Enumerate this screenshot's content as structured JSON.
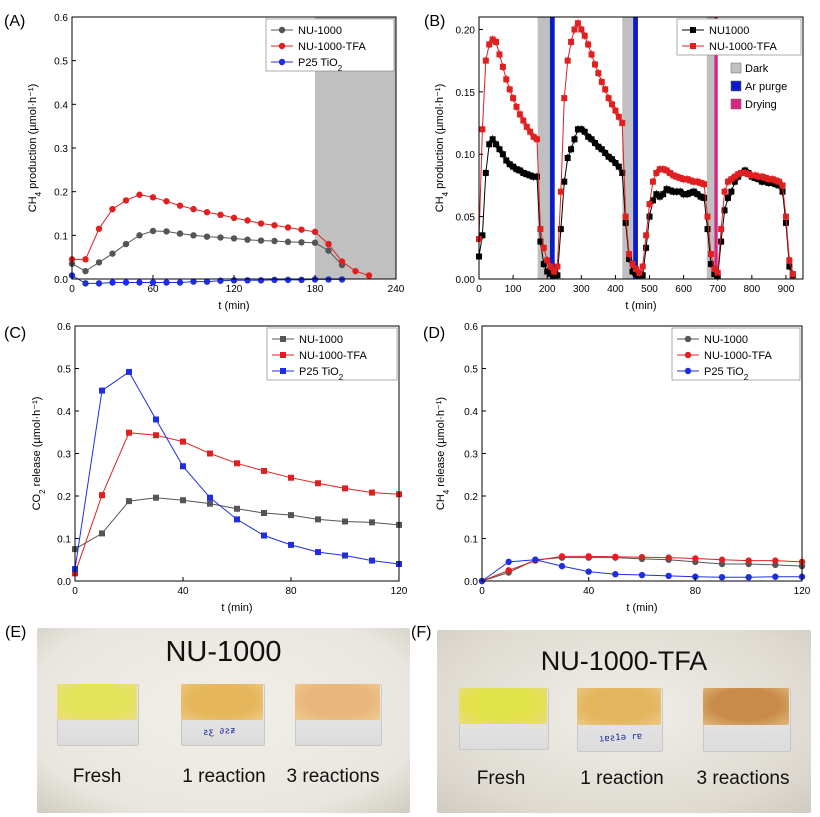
{
  "chart_data": [
    {
      "panel": "(A)",
      "type": "line",
      "xlabel": "t (min)",
      "ylabel": "CH4 production (µmol·h⁻¹)",
      "xlim": [
        0,
        240
      ],
      "ylim": [
        0,
        0.6
      ],
      "xticks": [
        0,
        60,
        120,
        180,
        240
      ],
      "yticks": [
        0.0,
        0.1,
        0.2,
        0.3,
        0.4,
        0.5,
        0.6
      ],
      "legend_position": "top-right",
      "shaded_regions": [
        {
          "x0": 180,
          "x1": 240,
          "color": "#c0c0c0"
        }
      ],
      "series": [
        {
          "name": "NU-1000",
          "color": "#555555",
          "marker": "circle",
          "x": [
            0,
            10,
            20,
            30,
            40,
            50,
            60,
            70,
            80,
            90,
            100,
            110,
            120,
            130,
            140,
            150,
            160,
            170,
            180,
            190,
            200
          ],
          "values": [
            0.035,
            0.018,
            0.038,
            0.058,
            0.08,
            0.1,
            0.11,
            0.109,
            0.104,
            0.1,
            0.097,
            0.095,
            0.093,
            0.09,
            0.088,
            0.087,
            0.085,
            0.084,
            0.083,
            0.065,
            0.032
          ]
        },
        {
          "name": "NU-1000-TFA",
          "color": "#e02020",
          "marker": "circle",
          "x": [
            0,
            10,
            20,
            30,
            40,
            50,
            60,
            70,
            80,
            90,
            100,
            110,
            120,
            130,
            140,
            150,
            160,
            170,
            180,
            190,
            200,
            210,
            220
          ],
          "values": [
            0.045,
            0.045,
            0.115,
            0.16,
            0.18,
            0.193,
            0.187,
            0.178,
            0.168,
            0.16,
            0.153,
            0.147,
            0.14,
            0.134,
            0.127,
            0.123,
            0.118,
            0.113,
            0.108,
            0.08,
            0.04,
            0.018,
            0.008
          ]
        },
        {
          "name": "P25 TiO2",
          "color": "#1f2fe0",
          "marker": "circle",
          "x": [
            0,
            10,
            20,
            30,
            40,
            50,
            60,
            70,
            80,
            90,
            100,
            110,
            120,
            130,
            140,
            150,
            160,
            170,
            180,
            190,
            200
          ],
          "values": [
            0.008,
            -0.01,
            -0.01,
            -0.008,
            -0.008,
            -0.008,
            -0.008,
            -0.008,
            -0.008,
            -0.006,
            -0.006,
            -0.004,
            -0.003,
            -0.003,
            -0.003,
            -0.002,
            -0.002,
            -0.002,
            -0.001,
            -0.001,
            -0.001
          ]
        }
      ]
    },
    {
      "panel": "(B)",
      "type": "scatter",
      "xlabel": "t (min)",
      "ylabel": "CH4 production (µmol·h⁻¹)",
      "xlim": [
        0,
        950
      ],
      "ylim": [
        0,
        0.21
      ],
      "xticks": [
        0,
        100,
        200,
        300,
        400,
        500,
        600,
        700,
        800,
        900
      ],
      "yticks": [
        0.0,
        0.05,
        0.1,
        0.15,
        0.2
      ],
      "legend_position": "top-right",
      "shaded_regions": [
        {
          "x0": 172,
          "x1": 208,
          "color": "#c0c0c0"
        },
        {
          "x0": 208,
          "x1": 222,
          "color": "#0b1bc8"
        },
        {
          "x0": 420,
          "x1": 452,
          "color": "#c0c0c0"
        },
        {
          "x0": 452,
          "x1": 466,
          "color": "#0b1bc8"
        },
        {
          "x0": 668,
          "x1": 690,
          "color": "#c0c0c0"
        },
        {
          "x0": 690,
          "x1": 700,
          "color": "#d6267f"
        }
      ],
      "region_legend": [
        {
          "label": "Dark",
          "color": "#c0c0c0"
        },
        {
          "label": "Ar purge",
          "color": "#0b1bc8"
        },
        {
          "label": "Drying",
          "color": "#d6267f"
        }
      ],
      "series": [
        {
          "name": "NU1000",
          "color": "#000000",
          "marker": "square",
          "segments": [
            {
              "x": [
                0,
                10,
                20,
                30,
                40,
                50,
                60,
                70,
                80,
                90,
                100,
                110,
                120,
                130,
                140,
                150,
                160,
                170,
                180,
                190,
                200,
                210,
                220
              ],
              "values": [
                0.018,
                0.035,
                0.085,
                0.108,
                0.112,
                0.108,
                0.104,
                0.1,
                0.095,
                0.092,
                0.09,
                0.088,
                0.087,
                0.085,
                0.084,
                0.083,
                0.082,
                0.082,
                0.03,
                0.012,
                0.006,
                0.004,
                0.003
              ]
            },
            {
              "x": [
                230,
                240,
                250,
                260,
                270,
                280,
                290,
                300,
                310,
                320,
                330,
                340,
                350,
                360,
                370,
                380,
                390,
                400,
                410,
                420,
                430,
                440,
                450,
                460,
                470
              ],
              "values": [
                0.003,
                0.04,
                0.078,
                0.097,
                0.104,
                0.112,
                0.12,
                0.12,
                0.118,
                0.114,
                0.112,
                0.109,
                0.106,
                0.104,
                0.101,
                0.098,
                0.096,
                0.093,
                0.09,
                0.085,
                0.045,
                0.016,
                0.006,
                0.004,
                0.003
              ]
            },
            {
              "x": [
                480,
                490,
                500,
                510,
                520,
                530,
                540,
                550,
                560,
                570,
                580,
                590,
                600,
                610,
                620,
                630,
                640,
                650,
                660,
                670,
                680,
                690
              ],
              "values": [
                0.003,
                0.025,
                0.05,
                0.063,
                0.068,
                0.066,
                0.068,
                0.072,
                0.071,
                0.07,
                0.07,
                0.07,
                0.068,
                0.068,
                0.069,
                0.07,
                0.068,
                0.066,
                0.065,
                0.04,
                0.012,
                0.004
              ]
            },
            {
              "x": [
                700,
                710,
                720,
                730,
                740,
                750,
                760,
                770,
                780,
                790,
                800,
                810,
                820,
                830,
                840,
                850,
                860,
                870,
                880,
                890,
                900,
                910,
                920
              ],
              "values": [
                0.002,
                0.03,
                0.055,
                0.065,
                0.07,
                0.078,
                0.082,
                0.085,
                0.087,
                0.085,
                0.082,
                0.081,
                0.08,
                0.078,
                0.078,
                0.077,
                0.077,
                0.076,
                0.075,
                0.07,
                0.045,
                0.01,
                0.003
              ]
            }
          ]
        },
        {
          "name": "NU-1000-TFA",
          "color": "#e02020",
          "marker": "square",
          "segments": [
            {
              "x": [
                0,
                10,
                20,
                30,
                40,
                50,
                60,
                70,
                80,
                90,
                100,
                110,
                120,
                130,
                140,
                150,
                160,
                170,
                180,
                190,
                200,
                210,
                220
              ],
              "values": [
                0.032,
                0.12,
                0.175,
                0.188,
                0.192,
                0.19,
                0.18,
                0.17,
                0.16,
                0.152,
                0.145,
                0.138,
                0.132,
                0.127,
                0.122,
                0.118,
                0.114,
                0.112,
                0.04,
                0.025,
                0.015,
                0.01,
                0.006
              ]
            },
            {
              "x": [
                230,
                240,
                250,
                260,
                270,
                280,
                290,
                300,
                310,
                320,
                330,
                340,
                350,
                360,
                370,
                380,
                390,
                400,
                410,
                420,
                430,
                440,
                450,
                460,
                470
              ],
              "values": [
                0.01,
                0.07,
                0.145,
                0.175,
                0.19,
                0.2,
                0.205,
                0.2,
                0.195,
                0.188,
                0.18,
                0.172,
                0.165,
                0.158,
                0.152,
                0.145,
                0.14,
                0.135,
                0.13,
                0.125,
                0.05,
                0.02,
                0.012,
                0.008,
                0.005
              ]
            },
            {
              "x": [
                480,
                490,
                500,
                510,
                520,
                530,
                540,
                550,
                560,
                570,
                580,
                590,
                600,
                610,
                620,
                630,
                640,
                650,
                660,
                670,
                680,
                690
              ],
              "values": [
                0.01,
                0.035,
                0.06,
                0.078,
                0.085,
                0.088,
                0.088,
                0.087,
                0.085,
                0.083,
                0.082,
                0.081,
                0.08,
                0.08,
                0.079,
                0.078,
                0.078,
                0.077,
                0.076,
                0.05,
                0.02,
                0.008
              ]
            },
            {
              "x": [
                700,
                710,
                720,
                730,
                740,
                750,
                760,
                770,
                780,
                790,
                800,
                810,
                820,
                830,
                840,
                850,
                860,
                870,
                880,
                890,
                900,
                910,
                920
              ],
              "values": [
                0.005,
                0.04,
                0.07,
                0.078,
                0.08,
                0.082,
                0.084,
                0.085,
                0.085,
                0.084,
                0.083,
                0.083,
                0.082,
                0.082,
                0.081,
                0.08,
                0.08,
                0.079,
                0.078,
                0.075,
                0.05,
                0.015,
                0.004
              ]
            }
          ]
        }
      ]
    },
    {
      "panel": "(C)",
      "type": "line",
      "xlabel": "t (min)",
      "ylabel": "CO2 release (µmol·h⁻¹)",
      "xlim": [
        0,
        120
      ],
      "ylim": [
        0,
        0.6
      ],
      "xticks": [
        0,
        40,
        80,
        120
      ],
      "yticks": [
        0.0,
        0.1,
        0.2,
        0.3,
        0.4,
        0.5,
        0.6
      ],
      "legend_position": "top-right",
      "series": [
        {
          "name": "NU-1000",
          "color": "#555555",
          "marker": "square",
          "x": [
            0,
            10,
            20,
            30,
            40,
            50,
            60,
            70,
            80,
            90,
            100,
            110,
            120
          ],
          "values": [
            0.075,
            0.112,
            0.188,
            0.196,
            0.19,
            0.182,
            0.17,
            0.16,
            0.155,
            0.145,
            0.14,
            0.138,
            0.132
          ]
        },
        {
          "name": "NU-1000-TFA",
          "color": "#e02020",
          "marker": "square",
          "x": [
            0,
            10,
            20,
            30,
            40,
            50,
            60,
            70,
            80,
            90,
            100,
            110,
            120
          ],
          "values": [
            0.018,
            0.202,
            0.349,
            0.343,
            0.328,
            0.3,
            0.277,
            0.259,
            0.243,
            0.23,
            0.218,
            0.208,
            0.204
          ]
        },
        {
          "name": "P25 TiO2",
          "color": "#1f2fe0",
          "marker": "square",
          "x": [
            0,
            10,
            20,
            30,
            40,
            50,
            60,
            70,
            80,
            90,
            100,
            110,
            120
          ],
          "values": [
            0.028,
            0.448,
            0.492,
            0.38,
            0.27,
            0.196,
            0.145,
            0.107,
            0.085,
            0.068,
            0.06,
            0.048,
            0.04
          ]
        }
      ]
    },
    {
      "panel": "(D)",
      "type": "line",
      "xlabel": "t (min)",
      "ylabel": "CH4 release (µmol·h⁻¹)",
      "xlim": [
        0,
        120
      ],
      "ylim": [
        0,
        0.6
      ],
      "xticks": [
        0,
        40,
        80,
        120
      ],
      "yticks": [
        0.0,
        0.1,
        0.2,
        0.3,
        0.4,
        0.5,
        0.6
      ],
      "legend_position": "top-right",
      "series": [
        {
          "name": "NU-1000",
          "color": "#555555",
          "marker": "circle",
          "x": [
            0,
            10,
            20,
            30,
            40,
            50,
            60,
            70,
            80,
            90,
            100,
            110,
            120
          ],
          "values": [
            0,
            0.02,
            0.05,
            0.055,
            0.055,
            0.055,
            0.052,
            0.05,
            0.045,
            0.04,
            0.04,
            0.038,
            0.035
          ]
        },
        {
          "name": "NU-1000-TFA",
          "color": "#e02020",
          "marker": "circle",
          "x": [
            0,
            10,
            20,
            30,
            40,
            50,
            60,
            70,
            80,
            90,
            100,
            110,
            120
          ],
          "values": [
            0,
            0.025,
            0.048,
            0.058,
            0.058,
            0.057,
            0.056,
            0.055,
            0.053,
            0.05,
            0.048,
            0.048,
            0.045
          ]
        },
        {
          "name": "P25 TiO2",
          "color": "#1f2fe0",
          "marker": "circle",
          "x": [
            0,
            10,
            20,
            30,
            40,
            50,
            60,
            70,
            80,
            90,
            100,
            110,
            120
          ],
          "values": [
            0,
            0.045,
            0.05,
            0.035,
            0.022,
            0.016,
            0.014,
            0.012,
            0.01,
            0.009,
            0.009,
            0.01,
            0.01
          ]
        }
      ]
    }
  ],
  "photos": [
    {
      "panel": "(E)",
      "title": "NU-1000",
      "background": "#e8e6de",
      "samples": [
        {
          "caption": "Fresh",
          "film_color": "#e4e35a",
          "scribble": ""
        },
        {
          "caption": "1 reaction",
          "film_color": "#e6b65a",
          "scribble": "ƨƹ ∂ƨƶ"
        },
        {
          "caption": "3 reactions",
          "film_color": "#e9b77b",
          "scribble": ""
        }
      ]
    },
    {
      "panel": "(F)",
      "title": "NU-1000-TFA",
      "background": "#dedad2",
      "samples": [
        {
          "caption": "Fresh",
          "film_color": "#e2e24a",
          "scribble": ""
        },
        {
          "caption": "1 reaction",
          "film_color": "#e3b55e",
          "scribble": "ıɐƨ1ǝ rɐ"
        },
        {
          "caption": "3 reactions",
          "film_color": "#c98c48",
          "scribble": ""
        }
      ]
    }
  ]
}
